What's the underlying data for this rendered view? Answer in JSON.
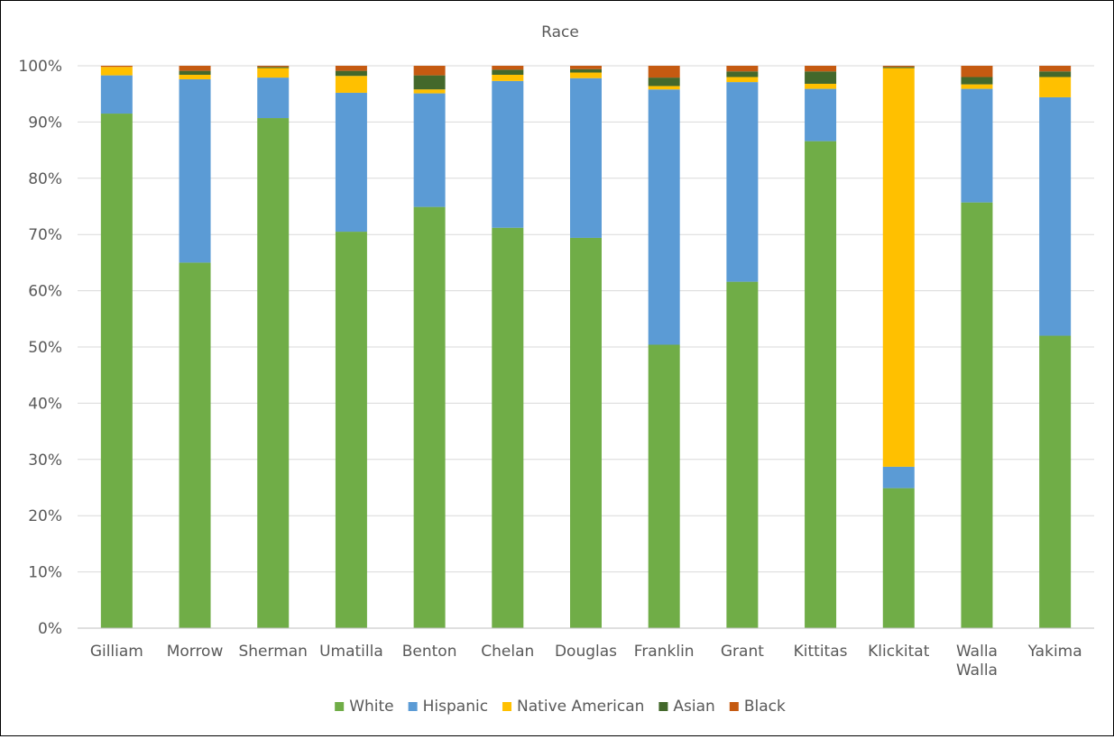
{
  "chart_data": {
    "type": "bar",
    "stacked": true,
    "title": "Race",
    "xlabel": "",
    "ylabel": "",
    "ylim": [
      0,
      100
    ],
    "yticks": [
      "0%",
      "10%",
      "20%",
      "30%",
      "40%",
      "50%",
      "60%",
      "70%",
      "80%",
      "90%",
      "100%"
    ],
    "grid": true,
    "legend_position": "bottom",
    "categories": [
      "Gilliam",
      "Morrow",
      "Sherman",
      "Umatilla",
      "Benton",
      "Chelan",
      "Douglas",
      "Franklin",
      "Grant",
      "Kittitas",
      "Klickitat",
      "Walla Walla",
      "Yakima"
    ],
    "series": [
      {
        "name": "White",
        "color": "#70ad47",
        "values": [
          91.5,
          65.0,
          90.7,
          70.5,
          74.9,
          71.2,
          69.4,
          50.4,
          61.6,
          86.6,
          24.9,
          75.7,
          52.0
        ]
      },
      {
        "name": "Hispanic",
        "color": "#5b9bd5",
        "values": [
          6.8,
          32.6,
          7.2,
          24.7,
          20.2,
          26.1,
          28.4,
          45.4,
          35.5,
          9.3,
          3.8,
          20.2,
          42.4
        ]
      },
      {
        "name": "Native American",
        "color": "#ffc000",
        "values": [
          1.5,
          0.8,
          1.7,
          3.0,
          0.7,
          1.1,
          1.0,
          0.6,
          0.9,
          0.9,
          70.9,
          0.8,
          3.6
        ]
      },
      {
        "name": "Asian",
        "color": "#43682b",
        "values": [
          0.0,
          0.7,
          0.2,
          0.9,
          2.5,
          0.9,
          0.6,
          1.5,
          1.0,
          2.2,
          0.2,
          1.3,
          1.0
        ]
      },
      {
        "name": "Black",
        "color": "#c55a11",
        "values": [
          0.2,
          0.9,
          0.2,
          0.9,
          1.7,
          0.7,
          0.6,
          2.1,
          1.0,
          1.0,
          0.2,
          2.0,
          1.0
        ]
      }
    ]
  }
}
